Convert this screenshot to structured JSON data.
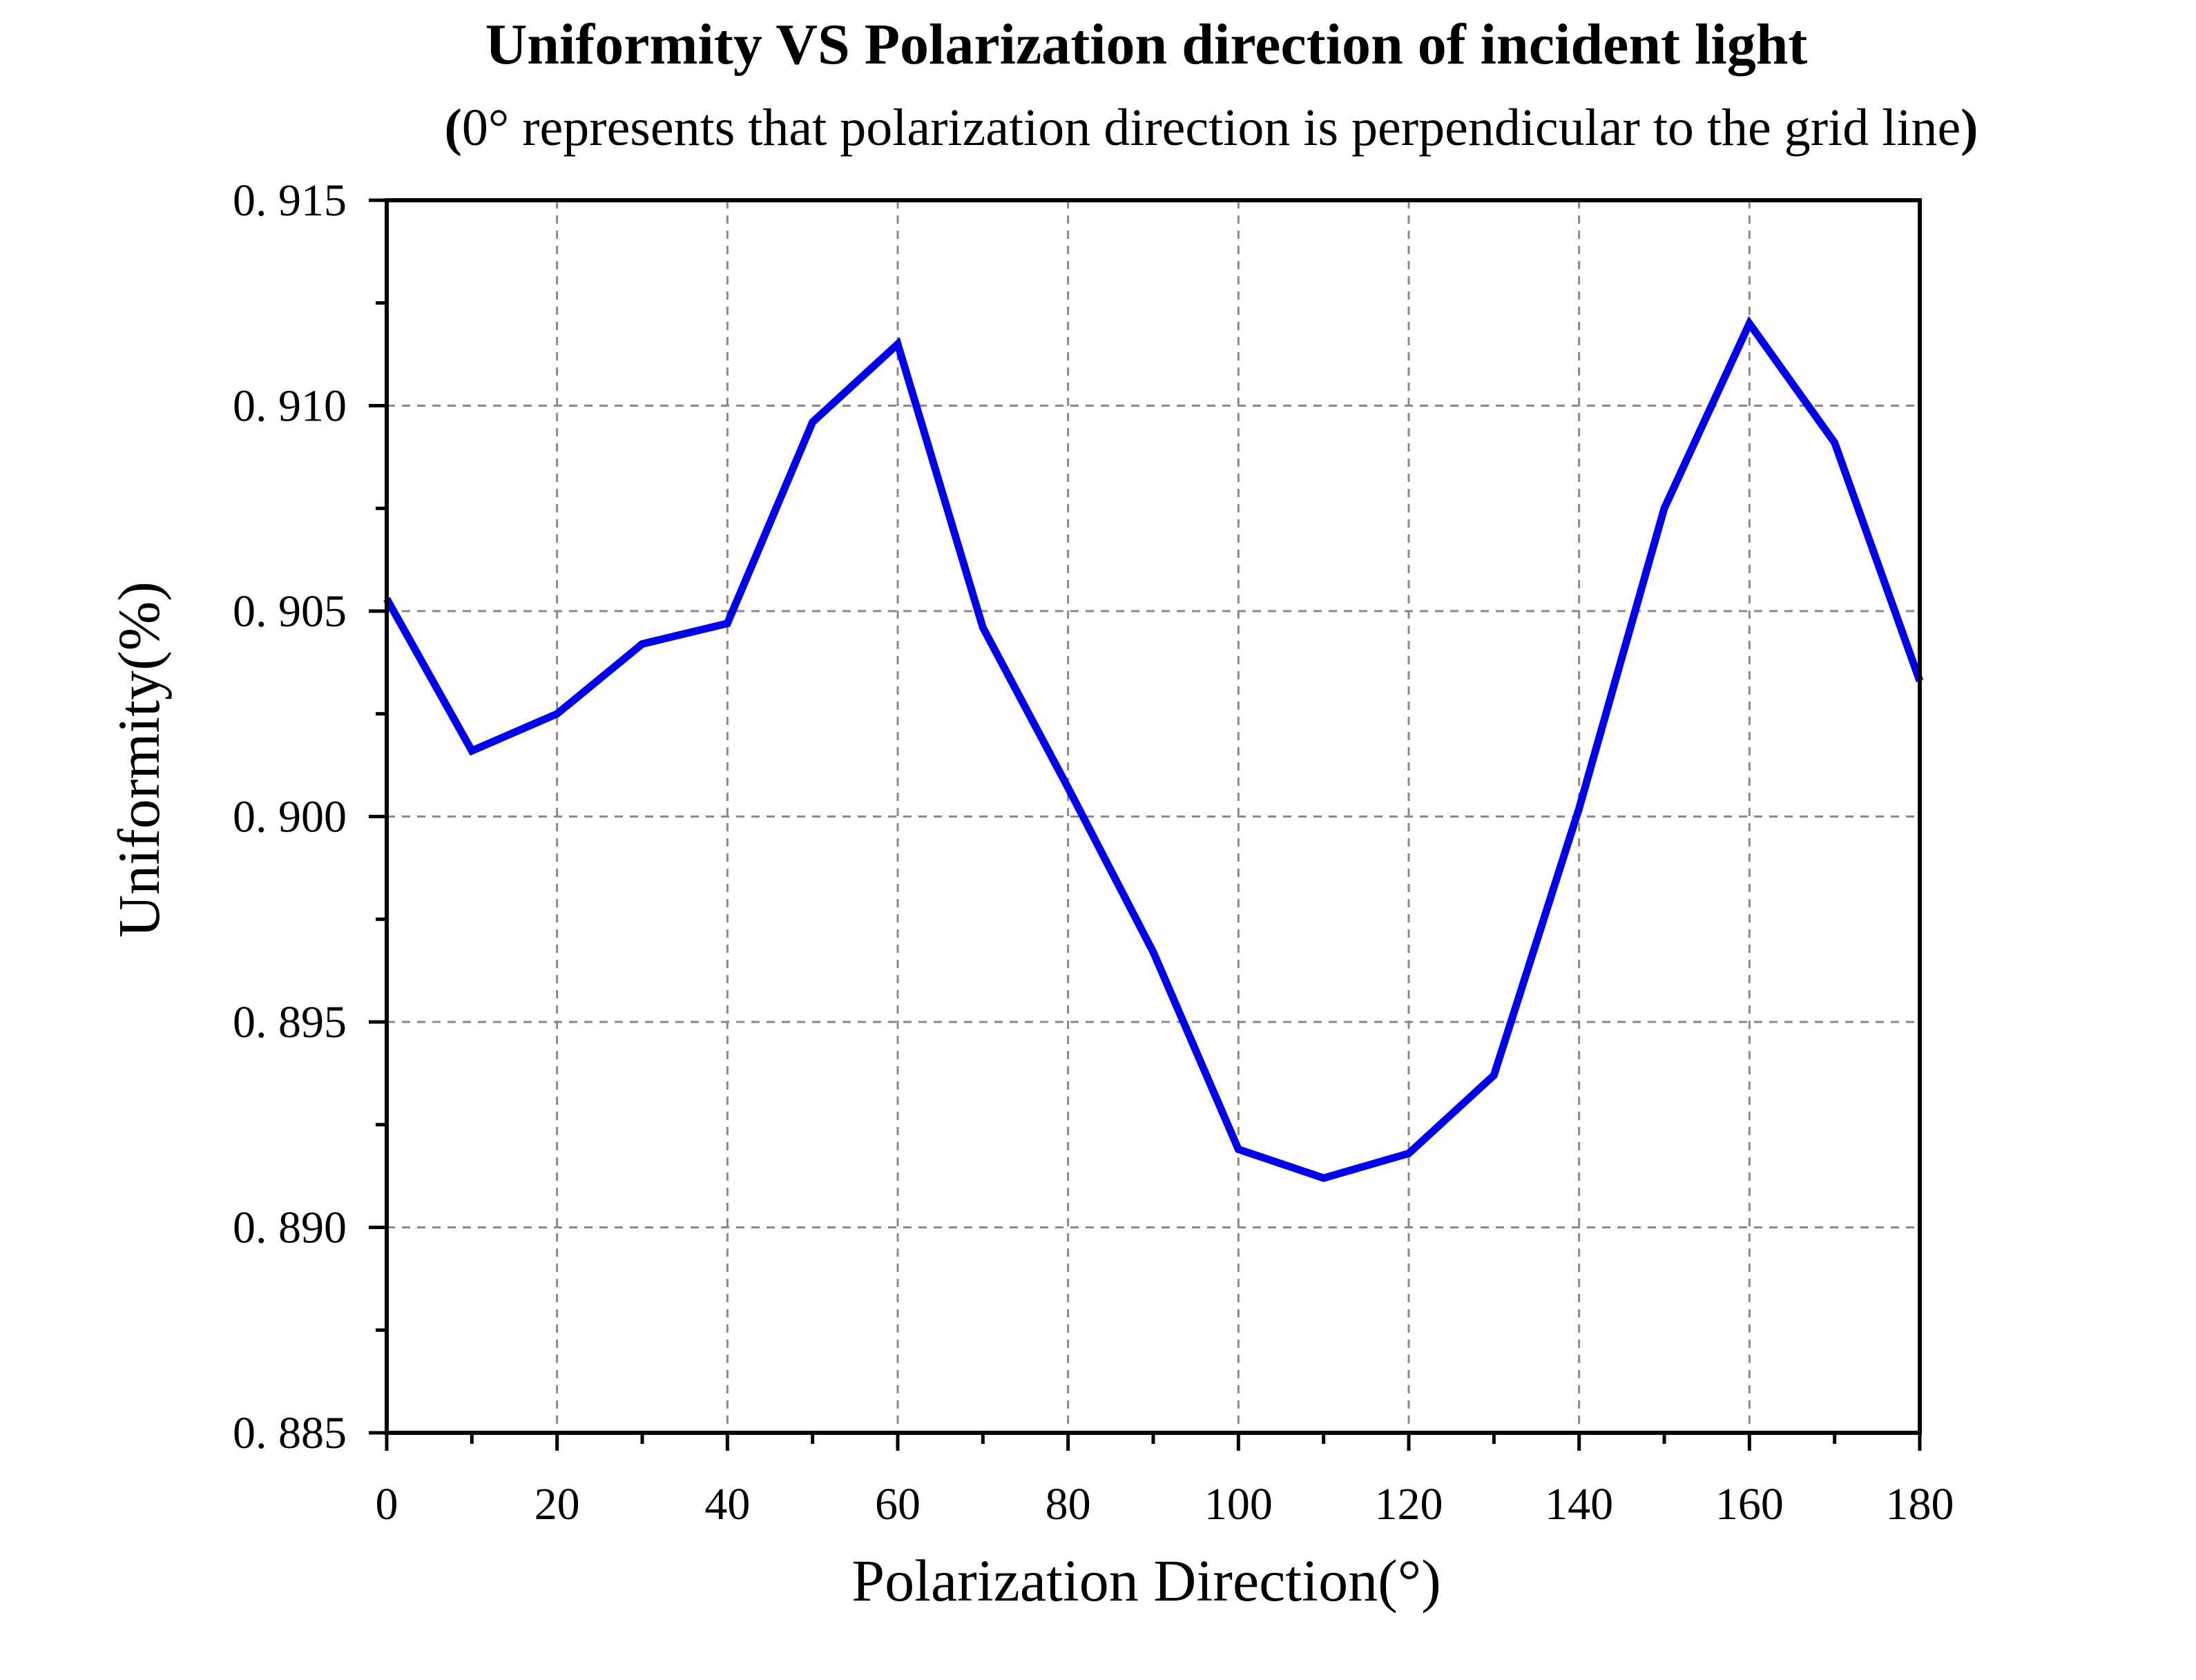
{
  "title": "Uniformity VS Polarization direction of incident light",
  "subtitle_open": "(",
  "subtitle_body": "0° represents that  polarization direction is perpendicular to the grid line",
  "subtitle_close": ")",
  "chart_data": {
    "type": "line",
    "title": "Uniformity VS Polarization direction of incident light",
    "subtitle": "(0° represents that  polarization direction is perpendicular to the grid line)",
    "xlabel": "Polarization Direction(°)",
    "ylabel": "Uniformity(%)",
    "xlim": [
      0,
      180
    ],
    "ylim": [
      0.885,
      0.915
    ],
    "grid": true,
    "legend": "none",
    "x_ticks": [
      0,
      20,
      40,
      60,
      80,
      100,
      120,
      140,
      160,
      180
    ],
    "x_tick_labels": [
      "0",
      "20",
      "40",
      "60",
      "80",
      "100",
      "120",
      "140",
      "160",
      "180"
    ],
    "y_ticks": [
      0.885,
      0.89,
      0.895,
      0.9,
      0.905,
      0.91,
      0.915
    ],
    "y_tick_labels": [
      "0. 885",
      "0. 890",
      "0. 895",
      "0. 900",
      "0. 905",
      "0. 910",
      "0. 915"
    ],
    "x_minor_step": 10,
    "y_minor_step": 0.0025,
    "series": [
      {
        "color": "#0000ee",
        "x": [
          0,
          10,
          20,
          30,
          40,
          50,
          60,
          70,
          80,
          90,
          100,
          110,
          120,
          130,
          140,
          150,
          160,
          170,
          180
        ],
        "y": [
          0.9053,
          0.9016,
          0.9025,
          0.9042,
          0.9047,
          0.9096,
          0.9115,
          0.9046,
          0.9007,
          0.8967,
          0.8919,
          0.8912,
          0.8918,
          0.8937,
          0.9002,
          0.9075,
          0.912,
          0.9091,
          0.9033
        ]
      }
    ]
  }
}
